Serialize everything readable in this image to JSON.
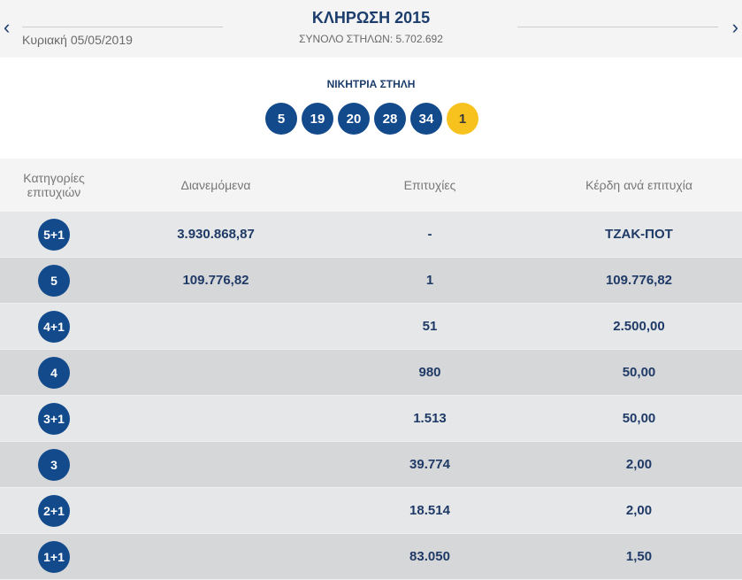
{
  "header": {
    "title": "ΚΛΗΡΩΣΗ 2015",
    "date": "Κυριακή 05/05/2019",
    "total": "ΣΥΝΟΛΟ ΣΤΗΛΩΝ: 5.702.692",
    "prev_icon": "‹",
    "next_icon": "›"
  },
  "winning": {
    "title": "ΝΙΚΗΤΡΙΑ ΣΤΗΛΗ",
    "numbers": [
      "5",
      "19",
      "20",
      "28",
      "34"
    ],
    "joker": "1"
  },
  "table": {
    "headers": [
      "Κατηγορίες επιτυχιών",
      "Διανεμόμενα",
      "Επιτυχίες",
      "Κέρδη ανά επιτυχία"
    ],
    "rows": [
      {
        "category": "5+1",
        "distributed": "3.930.868,87",
        "winners": "-",
        "payout": "ΤΖΑΚ-ΠΟΤ"
      },
      {
        "category": "5",
        "distributed": "109.776,82",
        "winners": "1",
        "payout": "109.776,82"
      },
      {
        "category": "4+1",
        "distributed": "",
        "winners": "51",
        "payout": "2.500,00"
      },
      {
        "category": "4",
        "distributed": "",
        "winners": "980",
        "payout": "50,00"
      },
      {
        "category": "3+1",
        "distributed": "",
        "winners": "1.513",
        "payout": "50,00"
      },
      {
        "category": "3",
        "distributed": "",
        "winners": "39.774",
        "payout": "2,00"
      },
      {
        "category": "2+1",
        "distributed": "",
        "winners": "18.514",
        "payout": "2,00"
      },
      {
        "category": "1+1",
        "distributed": "",
        "winners": "83.050",
        "payout": "1,50"
      }
    ]
  },
  "colors": {
    "navy": "#134a8c",
    "joker": "#f7c21d",
    "text": "#1f3a66"
  }
}
